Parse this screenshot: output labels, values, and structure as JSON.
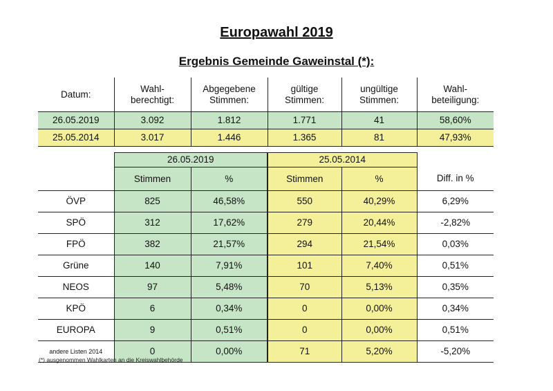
{
  "title": "Europawahl 2019",
  "subtitle": "Ergebnis Gemeinde Gaweinstal (*):",
  "summary": {
    "headers": [
      "Datum:",
      "Wahl-\nberechtigt:",
      "Abgegebene\nStimmen:",
      "gültige\nStimmen:",
      "ungültige\nStimmen:",
      "Wahl-\nbeteiligung:"
    ],
    "rows": [
      [
        "26.05.2019",
        "3.092",
        "1.812",
        "1.771",
        "41",
        "58,60%"
      ],
      [
        "25.05.2014",
        "3.017",
        "1.446",
        "1.365",
        "81",
        "47,93%"
      ]
    ]
  },
  "results": {
    "date_2019": "26.05.2019",
    "date_2014": "25.05.2014",
    "col_stimmen": "Stimmen",
    "col_pct": "%",
    "col_diff": "Diff. in %",
    "rows": [
      {
        "party": "ÖVP",
        "s19": "825",
        "p19": "46,58%",
        "s14": "550",
        "p14": "40,29%",
        "diff": "6,29%"
      },
      {
        "party": "SPÖ",
        "s19": "312",
        "p19": "17,62%",
        "s14": "279",
        "p14": "20,44%",
        "diff": "-2,82%"
      },
      {
        "party": "FPÖ",
        "s19": "382",
        "p19": "21,57%",
        "s14": "294",
        "p14": "21,54%",
        "diff": "0,03%"
      },
      {
        "party": "Grüne",
        "s19": "140",
        "p19": "7,91%",
        "s14": "101",
        "p14": "7,40%",
        "diff": "0,51%"
      },
      {
        "party": "NEOS",
        "s19": "97",
        "p19": "5,48%",
        "s14": "70",
        "p14": "5,13%",
        "diff": "0,35%"
      },
      {
        "party": "KPÖ",
        "s19": "6",
        "p19": "0,34%",
        "s14": "0",
        "p14": "0,00%",
        "diff": "0,34%"
      },
      {
        "party": "EUROPA",
        "s19": "9",
        "p19": "0,51%",
        "s14": "0",
        "p14": "0,00%",
        "diff": "0,51%"
      },
      {
        "party": "andere Listen 2014",
        "s19": "0",
        "p19": "0,00%",
        "s14": "71",
        "p14": "5,20%",
        "diff": "-5,20%"
      }
    ]
  },
  "footnote": "(*) ausgenommen Wahlkarten an die Kreiswahlbehörde",
  "colors": {
    "green": "#c6e4c6",
    "yellow": "#f4f09a"
  }
}
